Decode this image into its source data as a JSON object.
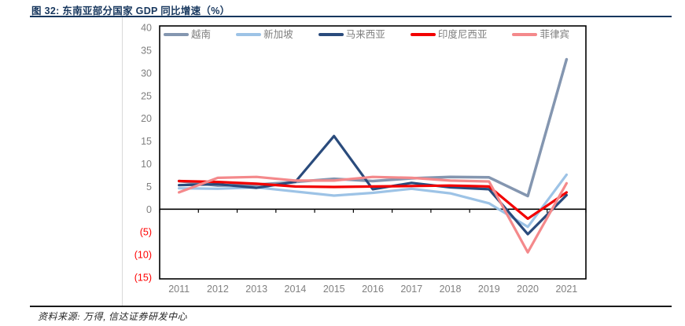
{
  "figure": {
    "title": "图 32: 东南亚部分国家 GDP 同比增速（%）",
    "source": "资料来源: 万得, 信达证券研发中心"
  },
  "chart_data": {
    "type": "line",
    "x": [
      2011,
      2012,
      2013,
      2014,
      2015,
      2016,
      2017,
      2018,
      2019,
      2020,
      2021
    ],
    "series": [
      {
        "id": "vietnam",
        "name": "越南",
        "color": "#8496b0",
        "width": 3.5,
        "values": [
          6.2,
          5.2,
          5.4,
          6.0,
          6.7,
          6.2,
          6.8,
          7.1,
          7.0,
          2.9,
          33.0
        ]
      },
      {
        "id": "singapore",
        "name": "新加坡",
        "color": "#9dc3e6",
        "width": 3.2,
        "values": [
          4.6,
          4.5,
          4.8,
          3.9,
          3.0,
          3.6,
          4.5,
          3.5,
          1.3,
          -3.9,
          7.6
        ]
      },
      {
        "id": "malaysia",
        "name": "马来西亚",
        "color": "#2a4b7c",
        "width": 3.2,
        "values": [
          5.3,
          5.5,
          4.7,
          6.0,
          16.1,
          4.4,
          5.8,
          4.8,
          4.4,
          -5.5,
          3.1
        ]
      },
      {
        "id": "indonesia",
        "name": "印度尼西亚",
        "color": "#f20000",
        "width": 3.2,
        "values": [
          6.2,
          6.0,
          5.6,
          5.0,
          4.9,
          5.0,
          5.1,
          5.2,
          5.0,
          -2.1,
          3.7
        ]
      },
      {
        "id": "philippines",
        "name": "菲律宾",
        "color": "#f4898b",
        "width": 3.2,
        "values": [
          3.7,
          6.9,
          7.1,
          6.3,
          6.3,
          7.1,
          6.9,
          6.3,
          6.1,
          -9.5,
          5.7
        ]
      }
    ],
    "title": "东南亚部分国家 GDP 同比增速（%）",
    "xlabel": "",
    "ylabel": "",
    "ylim": [
      -15,
      40
    ],
    "ytick_step": 5,
    "ytick_labels": [
      "40",
      "35",
      "30",
      "25",
      "20",
      "15",
      "10",
      "5",
      "0",
      "(5)",
      "(10)",
      "(15)"
    ],
    "grid": false,
    "legend_position": "top",
    "colors": {
      "axis_label": "#808080",
      "negative_axis_label": "#ff0000",
      "plot_border": "#000000",
      "zero_line": "#000000"
    }
  }
}
